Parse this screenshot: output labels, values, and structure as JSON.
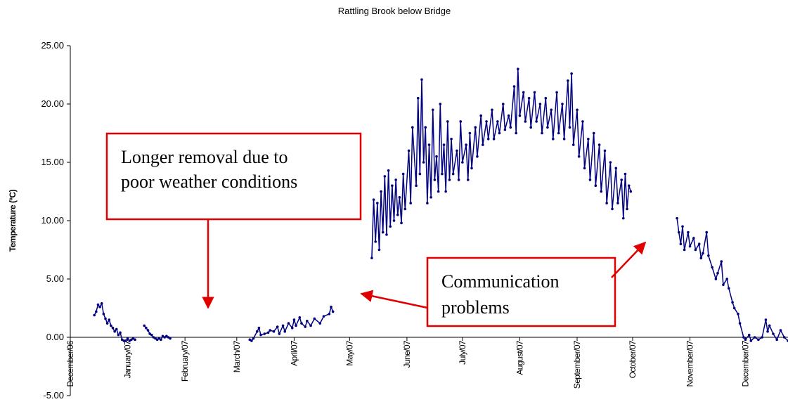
{
  "chart_data": {
    "type": "line",
    "title": "Rattling Brook below Bridge",
    "y_label": "Temperature (ºC)",
    "color": "#000080",
    "xlim": [
      0,
      388
    ],
    "ylim": [
      -5,
      25
    ],
    "yticks": [
      {
        "value": -5,
        "label": "-5.00"
      },
      {
        "value": 0,
        "label": "0.00"
      },
      {
        "value": 5,
        "label": "5.00"
      },
      {
        "value": 10,
        "label": "10.00"
      },
      {
        "value": 15,
        "label": "15.00"
      },
      {
        "value": 20,
        "label": "20.00"
      },
      {
        "value": 25,
        "label": "25.00"
      }
    ],
    "xticks": [
      {
        "value": 0,
        "label": "December/06"
      },
      {
        "value": 31,
        "label": "January/07"
      },
      {
        "value": 62,
        "label": "February/07"
      },
      {
        "value": 90,
        "label": "March/07"
      },
      {
        "value": 121,
        "label": "April/07"
      },
      {
        "value": 151,
        "label": "May/07"
      },
      {
        "value": 182,
        "label": "June/07"
      },
      {
        "value": 212,
        "label": "July/07"
      },
      {
        "value": 243,
        "label": "August/07"
      },
      {
        "value": 274,
        "label": "September/07"
      },
      {
        "value": 304,
        "label": "October/07"
      },
      {
        "value": 335,
        "label": "November/07"
      },
      {
        "value": 365,
        "label": "December/07"
      }
    ],
    "x": [
      13,
      14,
      15,
      16,
      17,
      18,
      19,
      20,
      21,
      22,
      23,
      24,
      25,
      26,
      27,
      28,
      29,
      30,
      31,
      32,
      33,
      34,
      35,
      37,
      40,
      41,
      42,
      43,
      44,
      45,
      46,
      47,
      48,
      49,
      50,
      51,
      52,
      53,
      54,
      70,
      97,
      98,
      99,
      101,
      102,
      103,
      105,
      107,
      108,
      110,
      112,
      113,
      115,
      116,
      118,
      120,
      121,
      122,
      124,
      125,
      127,
      128,
      130,
      132,
      135,
      137,
      140,
      141,
      142,
      150,
      163,
      164,
      165,
      166,
      167,
      168,
      169,
      170,
      171,
      172,
      173,
      174,
      175,
      176,
      177,
      178,
      179,
      180,
      181,
      183,
      184,
      185,
      187,
      188,
      189,
      190,
      191,
      192,
      193,
      194,
      195,
      196,
      197,
      198,
      199,
      200,
      201,
      202,
      203,
      204,
      205,
      206,
      207,
      209,
      210,
      211,
      212,
      214,
      215,
      216,
      217,
      219,
      220,
      222,
      223,
      225,
      226,
      228,
      229,
      231,
      232,
      234,
      235,
      237,
      238,
      240,
      241,
      242,
      243,
      245,
      246,
      248,
      249,
      251,
      252,
      254,
      255,
      257,
      258,
      260,
      261,
      263,
      264,
      266,
      267,
      269,
      270,
      271,
      272,
      274,
      275,
      277,
      278,
      280,
      281,
      283,
      284,
      286,
      287,
      289,
      290,
      292,
      293,
      295,
      296,
      298,
      299,
      300,
      301,
      302,
      303,
      315,
      328,
      329,
      330,
      331,
      332,
      334,
      335,
      337,
      338,
      340,
      341,
      342,
      344,
      345,
      347,
      349,
      350,
      352,
      353,
      355,
      356,
      358,
      359,
      361,
      362,
      364,
      365,
      367,
      368,
      370,
      372,
      374,
      376,
      377,
      378,
      380,
      382,
      384,
      386,
      388
    ],
    "values": [
      1.9,
      2.2,
      2.8,
      2.6,
      2.9,
      2.0,
      1.6,
      1.2,
      1.5,
      1.0,
      0.8,
      0.5,
      0.7,
      0.2,
      0.4,
      -0.2,
      -0.3,
      -0.3,
      -0.1,
      -0.3,
      -0.2,
      -0.1,
      -0.2,
      null,
      1.0,
      0.8,
      0.6,
      0.3,
      0.2,
      0.0,
      -0.1,
      -0.2,
      -0.1,
      -0.2,
      0.1,
      0.0,
      0.1,
      0.0,
      -0.1,
      null,
      -0.2,
      -0.3,
      -0.1,
      0.5,
      0.8,
      0.2,
      0.3,
      0.4,
      0.6,
      0.5,
      0.9,
      0.3,
      1.0,
      0.5,
      1.2,
      0.8,
      1.5,
      1.0,
      1.7,
      1.2,
      0.9,
      1.4,
      1.0,
      1.6,
      1.2,
      1.8,
      2.0,
      2.6,
      2.2,
      null,
      6.8,
      11.8,
      8.2,
      11.5,
      7.5,
      12.5,
      9.0,
      13.8,
      8.8,
      14.3,
      9.5,
      13.0,
      10.0,
      13.5,
      10.5,
      12.0,
      9.8,
      14.0,
      11.0,
      16.0,
      11.5,
      18.0,
      13.0,
      20.5,
      14.0,
      22.1,
      15.0,
      18.0,
      11.5,
      16.5,
      12.0,
      19.5,
      13.5,
      15.5,
      12.5,
      20.0,
      14.0,
      16.5,
      12.5,
      18.5,
      13.5,
      17.0,
      14.0,
      16.0,
      13.5,
      18.5,
      15.0,
      16.5,
      13.5,
      17.5,
      14.5,
      18.0,
      15.5,
      19.0,
      16.5,
      18.5,
      17.0,
      19.5,
      17.0,
      18.5,
      17.5,
      20.0,
      17.8,
      19.0,
      18.0,
      21.5,
      17.5,
      23.0,
      19.0,
      21.0,
      18.5,
      20.5,
      18.0,
      21.0,
      18.5,
      20.0,
      17.5,
      20.5,
      18.0,
      19.5,
      17.0,
      21.0,
      17.5,
      20.0,
      17.0,
      22.0,
      18.0,
      22.6,
      16.5,
      19.5,
      15.5,
      18.5,
      14.5,
      17.0,
      13.5,
      17.5,
      13.0,
      16.5,
      12.5,
      16.0,
      11.5,
      15.0,
      11.0,
      14.5,
      11.5,
      13.5,
      10.2,
      14.0,
      11.0,
      13.0,
      12.5,
      null,
      10.2,
      9.0,
      8.0,
      9.5,
      7.5,
      9.0,
      7.8,
      8.5,
      7.5,
      8.0,
      6.8,
      7.2,
      9.0,
      7.0,
      6.0,
      5.0,
      5.5,
      6.5,
      4.5,
      5.0,
      4.2,
      3.0,
      2.5,
      2.0,
      1.2,
      0.0,
      -0.2,
      0.2,
      -0.3,
      0.0,
      -0.2,
      0.0,
      1.5,
      0.5,
      1.0,
      0.3,
      -0.2,
      0.6,
      0.0,
      -0.3
    ],
    "annotations": [
      "Longer removal due to",
      "poor weather conditions",
      "Communication",
      "problems"
    ]
  }
}
